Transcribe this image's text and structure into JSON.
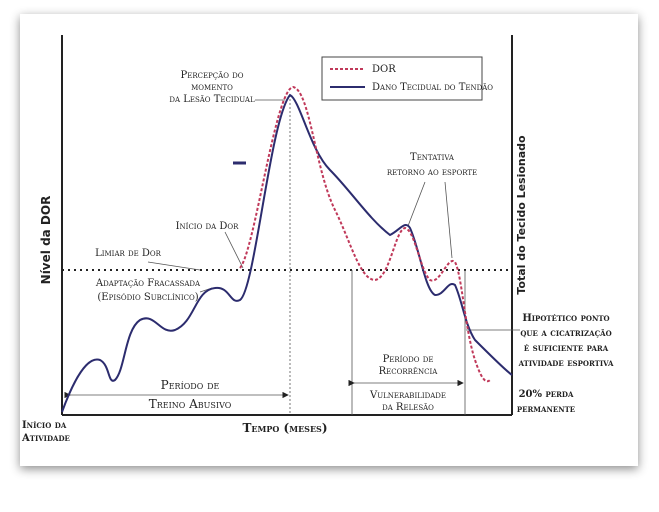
{
  "axes": {
    "y_left": "Nível da DOR",
    "y_right": "Total do Tecido Lesionado",
    "x": "Tempo (meses)"
  },
  "legend": [
    "DOR",
    "Dano Tecidual do Tendão"
  ],
  "labels": {
    "start": [
      "Início da",
      "Atividade"
    ],
    "threshold": "Limiar de Dor",
    "failed": [
      "Adaptação Fracassada",
      "(Episódio Subclínico)"
    ],
    "pain_start": "Início da Dor",
    "perception": [
      "Percepção do",
      "momento",
      "da Lesão Tecidual"
    ],
    "attempt": [
      "Tentativa",
      "retorno ao esporte"
    ],
    "abusive": [
      "Período de",
      "Treino Abusivo"
    ],
    "recurrence": [
      "Período de",
      "Recorrência"
    ],
    "vulnerability": [
      "Vulnerabilidade",
      "da Relesão"
    ],
    "hypothetical": [
      "Hipotético ponto",
      "que a cicatrização",
      "é suficiente para",
      "atividade esportiva"
    ],
    "loss": [
      "20% perda",
      "permanente"
    ]
  }
}
